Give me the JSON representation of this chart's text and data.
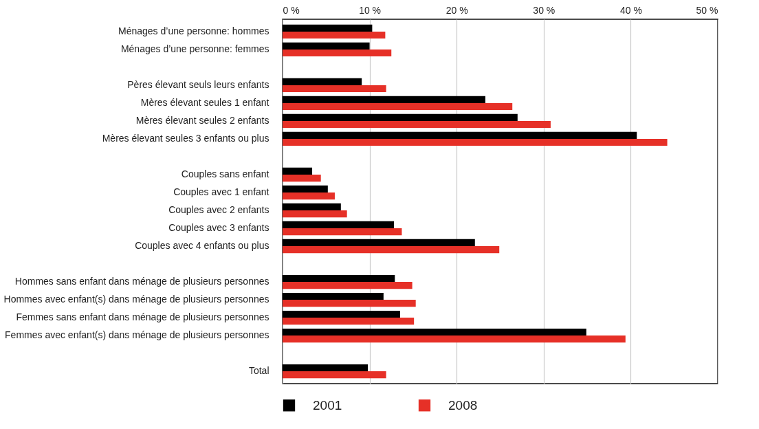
{
  "chart_data": {
    "type": "bar",
    "orientation": "horizontal",
    "categories": [
      "Ménages d’une personne: hommes",
      "Ménages d’une personne: femmes",
      null,
      "Pères élevant seuls leurs enfants",
      "Mères élevant seules 1 enfant",
      "Mères élevant seules 2 enfants",
      "Mères élevant seules 3 enfants ou plus",
      null,
      "Couples sans enfant",
      "Couples avec 1 enfant",
      "Couples avec 2 enfants",
      "Couples avec 3 enfants",
      "Couples avec 4 enfants ou plus",
      null,
      "Hommes sans enfant dans ménage de plusieurs personnes",
      "Hommes avec enfant(s) dans ménage de plusieurs personnes",
      "Femmes sans enfant dans ménage de plusieurs personnes",
      "Femmes avec enfant(s) dans ménage de plusieurs personnes",
      null,
      "Total"
    ],
    "series": [
      {
        "name": "2001",
        "color": "#000000",
        "values": [
          10.3,
          10.0,
          null,
          9.1,
          23.3,
          27.0,
          40.7,
          null,
          3.4,
          5.2,
          6.7,
          12.8,
          22.1,
          null,
          12.9,
          11.6,
          13.5,
          34.9,
          null,
          9.8
        ]
      },
      {
        "name": "2008",
        "color": "#e63027",
        "values": [
          11.8,
          12.5,
          null,
          11.9,
          26.4,
          30.8,
          44.2,
          null,
          4.4,
          6.0,
          7.4,
          13.7,
          24.9,
          null,
          14.9,
          15.3,
          15.1,
          39.4,
          null,
          11.9
        ]
      }
    ],
    "xlim": [
      0,
      50
    ],
    "xticks": [
      {
        "value": 0,
        "label": "0 %"
      },
      {
        "value": 10,
        "label": "10 %"
      },
      {
        "value": 20,
        "label": "20 %"
      },
      {
        "value": 30,
        "label": "30 %"
      },
      {
        "value": 40,
        "label": "40 %"
      },
      {
        "value": 50,
        "label": "50 %"
      }
    ],
    "grid": "x",
    "legend": "bottom"
  }
}
